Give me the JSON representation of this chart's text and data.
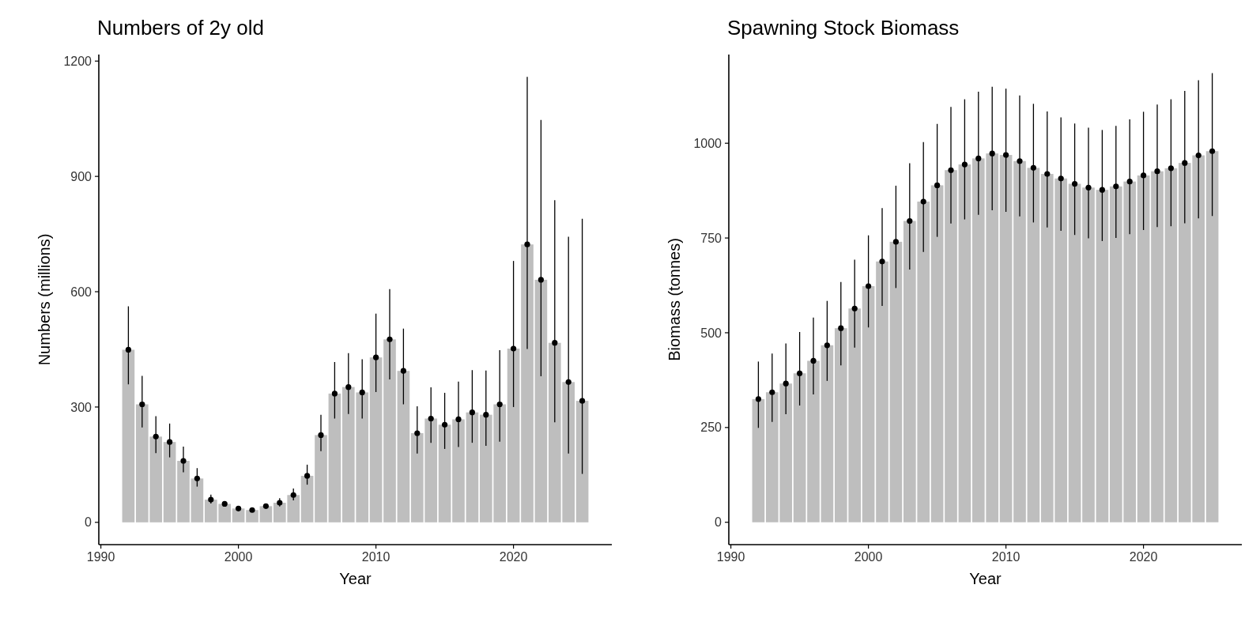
{
  "chart_data": [
    {
      "type": "bar",
      "title": "Numbers of 2y old",
      "xlabel": "Year",
      "ylabel": "Numbers (millions)",
      "x": [
        1992,
        1993,
        1994,
        1995,
        1996,
        1997,
        1998,
        1999,
        2000,
        2001,
        2002,
        2003,
        2004,
        2005,
        2006,
        2007,
        2008,
        2009,
        2010,
        2011,
        2012,
        2013,
        2014,
        2015,
        2016,
        2017,
        2018,
        2019,
        2020,
        2021,
        2022,
        2023,
        2024,
        2025
      ],
      "xlim": [
        1989.85,
        2027.15
      ],
      "xticks": [
        1990,
        2000,
        2010,
        2020
      ],
      "ylim": [
        -58,
        1217
      ],
      "yticks": [
        0,
        300,
        600,
        900,
        1200
      ],
      "grid": false,
      "marker": "circle",
      "series": [
        {
          "color": "#bebebe",
          "values": [
            449,
            307,
            223,
            209,
            160,
            114,
            59,
            48,
            36,
            32,
            42,
            51,
            71,
            121,
            227,
            335,
            352,
            338,
            429,
            476,
            394,
            232,
            270,
            254,
            268,
            286,
            280,
            307,
            452,
            723,
            631,
            467,
            365,
            316
          ]
        },
        {
          "type": "scatter",
          "color": "#000000",
          "values": [
            449,
            307,
            223,
            209,
            160,
            114,
            59,
            48,
            36,
            32,
            42,
            51,
            71,
            121,
            227,
            335,
            352,
            338,
            429,
            476,
            394,
            232,
            270,
            254,
            268,
            286,
            280,
            307,
            452,
            723,
            631,
            467,
            365,
            316
          ],
          "errors": [
            [
              359,
              562
            ],
            [
              247,
              381
            ],
            [
              180,
              276
            ],
            [
              169,
              257
            ],
            [
              130,
              197
            ],
            [
              93,
              141
            ],
            [
              49,
              72
            ],
            [
              41,
              54
            ],
            [
              32,
              40
            ],
            [
              28,
              36
            ],
            [
              37,
              46
            ],
            [
              41,
              63
            ],
            [
              57,
              88
            ],
            [
              98,
              150
            ],
            [
              185,
              280
            ],
            [
              270,
              417
            ],
            [
              282,
              440
            ],
            [
              270,
              424
            ],
            [
              339,
              543
            ],
            [
              372,
              607
            ],
            [
              307,
              504
            ],
            [
              179,
              302
            ],
            [
              207,
              351
            ],
            [
              191,
              337
            ],
            [
              196,
              366
            ],
            [
              207,
              396
            ],
            [
              199,
              395
            ],
            [
              210,
              448
            ],
            [
              300,
              680
            ],
            [
              451,
              1159
            ],
            [
              380,
              1047
            ],
            [
              260,
              838
            ],
            [
              179,
              743
            ],
            [
              126,
              790
            ]
          ]
        }
      ]
    },
    {
      "type": "bar",
      "title": "Spawning Stock Biomass",
      "xlabel": "Year",
      "ylabel": "Biomass (tonnes)",
      "x": [
        1992,
        1993,
        1994,
        1995,
        1996,
        1997,
        1998,
        1999,
        2000,
        2001,
        2002,
        2003,
        2004,
        2005,
        2006,
        2007,
        2008,
        2009,
        2010,
        2011,
        2012,
        2013,
        2014,
        2015,
        2016,
        2017,
        2018,
        2019,
        2020,
        2021,
        2022,
        2023,
        2024,
        2025
      ],
      "xlim": [
        1989.85,
        2027.15
      ],
      "xticks": [
        1990,
        2000,
        2010,
        2020
      ],
      "ylim": [
        -59,
        1234
      ],
      "yticks": [
        0,
        250,
        500,
        750,
        1000
      ],
      "grid": false,
      "marker": "circle",
      "series": [
        {
          "color": "#bebebe",
          "values": [
            325,
            343,
            366,
            393,
            426,
            467,
            512,
            564,
            623,
            688,
            740,
            795,
            846,
            889,
            929,
            944,
            960,
            973,
            969,
            953,
            935,
            919,
            907,
            893,
            883,
            877,
            886,
            899,
            915,
            926,
            934,
            948,
            968,
            979
          ]
        },
        {
          "type": "scatter",
          "color": "#000000",
          "values": [
            325,
            343,
            366,
            393,
            426,
            467,
            512,
            564,
            623,
            688,
            740,
            795,
            846,
            889,
            929,
            944,
            960,
            973,
            969,
            953,
            935,
            919,
            907,
            893,
            883,
            877,
            886,
            899,
            915,
            926,
            934,
            948,
            968,
            979
          ],
          "errors": [
            [
              249,
              424
            ],
            [
              265,
              445
            ],
            [
              285,
              472
            ],
            [
              308,
              502
            ],
            [
              337,
              540
            ],
            [
              373,
              584
            ],
            [
              414,
              634
            ],
            [
              461,
              693
            ],
            [
              514,
              757
            ],
            [
              571,
              829
            ],
            [
              618,
              888
            ],
            [
              667,
              947
            ],
            [
              713,
              1003
            ],
            [
              753,
              1051
            ],
            [
              788,
              1096
            ],
            [
              799,
              1116
            ],
            [
              811,
              1136
            ],
            [
              823,
              1149
            ],
            [
              819,
              1144
            ],
            [
              807,
              1126
            ],
            [
              791,
              1104
            ],
            [
              778,
              1084
            ],
            [
              769,
              1068
            ],
            [
              758,
              1052
            ],
            [
              749,
              1041
            ],
            [
              742,
              1035
            ],
            [
              750,
              1046
            ],
            [
              760,
              1063
            ],
            [
              771,
              1083
            ],
            [
              779,
              1102
            ],
            [
              781,
              1116
            ],
            [
              789,
              1138
            ],
            [
              802,
              1166
            ],
            [
              808,
              1185
            ]
          ]
        }
      ]
    }
  ]
}
